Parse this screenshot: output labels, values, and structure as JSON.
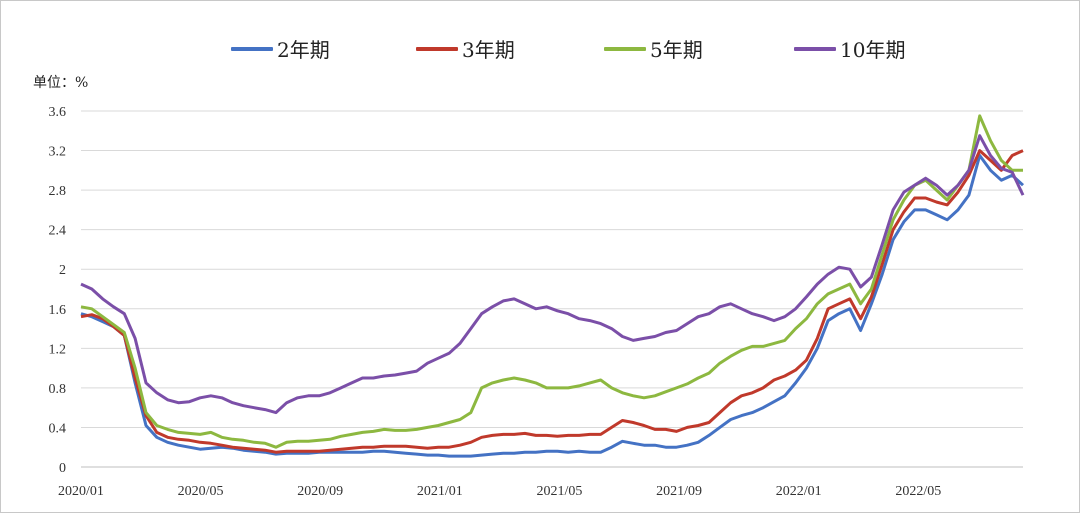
{
  "chart_data": {
    "type": "line",
    "unit_label": "单位：%",
    "ylim": [
      0,
      3.6
    ],
    "yticks": [
      "0",
      "0.4",
      "0.8",
      "1.2",
      "1.6",
      "2",
      "2.4",
      "2.8",
      "3.2",
      "3.6"
    ],
    "xticks": [
      "2020/01",
      "2020/05",
      "2020/09",
      "2021/01",
      "2021/05",
      "2021/09",
      "2022/01",
      "2022/05"
    ],
    "xrange": [
      "2020/01",
      "2022/08"
    ],
    "grid": "horizontal",
    "legend_position": "top",
    "series": [
      {
        "name": "2年期",
        "color": "#4472C4",
        "values": [
          1.55,
          1.52,
          1.47,
          1.42,
          1.33,
          0.85,
          0.42,
          0.3,
          0.25,
          0.22,
          0.2,
          0.18,
          0.19,
          0.2,
          0.19,
          0.17,
          0.16,
          0.15,
          0.13,
          0.14,
          0.14,
          0.14,
          0.15,
          0.15,
          0.15,
          0.15,
          0.15,
          0.16,
          0.16,
          0.15,
          0.14,
          0.13,
          0.12,
          0.12,
          0.11,
          0.11,
          0.11,
          0.12,
          0.13,
          0.14,
          0.14,
          0.15,
          0.15,
          0.16,
          0.16,
          0.15,
          0.16,
          0.15,
          0.15,
          0.2,
          0.26,
          0.24,
          0.22,
          0.22,
          0.2,
          0.2,
          0.22,
          0.25,
          0.32,
          0.4,
          0.48,
          0.52,
          0.55,
          0.6,
          0.66,
          0.72,
          0.85,
          1.0,
          1.2,
          1.48,
          1.55,
          1.6,
          1.38,
          1.65,
          1.95,
          2.3,
          2.48,
          2.6,
          2.6,
          2.55,
          2.5,
          2.6,
          2.75,
          3.15,
          3.0,
          2.9,
          2.95,
          2.85
        ]
      },
      {
        "name": "3年期",
        "color": "#C0392B",
        "values": [
          1.52,
          1.54,
          1.5,
          1.42,
          1.33,
          0.9,
          0.52,
          0.35,
          0.3,
          0.28,
          0.27,
          0.25,
          0.24,
          0.22,
          0.2,
          0.19,
          0.18,
          0.17,
          0.15,
          0.16,
          0.16,
          0.16,
          0.16,
          0.17,
          0.18,
          0.19,
          0.2,
          0.2,
          0.21,
          0.21,
          0.21,
          0.2,
          0.19,
          0.2,
          0.2,
          0.22,
          0.25,
          0.3,
          0.32,
          0.33,
          0.33,
          0.34,
          0.32,
          0.32,
          0.31,
          0.32,
          0.32,
          0.33,
          0.33,
          0.4,
          0.47,
          0.45,
          0.42,
          0.38,
          0.38,
          0.36,
          0.4,
          0.42,
          0.45,
          0.55,
          0.65,
          0.72,
          0.75,
          0.8,
          0.88,
          0.92,
          0.98,
          1.08,
          1.3,
          1.6,
          1.65,
          1.7,
          1.5,
          1.72,
          2.05,
          2.4,
          2.58,
          2.72,
          2.72,
          2.68,
          2.65,
          2.78,
          2.95,
          3.2,
          3.1,
          3.0,
          3.15,
          3.2
        ]
      },
      {
        "name": "5年期",
        "color": "#8DB840",
        "values": [
          1.62,
          1.6,
          1.52,
          1.44,
          1.36,
          1.0,
          0.55,
          0.42,
          0.38,
          0.35,
          0.34,
          0.33,
          0.35,
          0.3,
          0.28,
          0.27,
          0.25,
          0.24,
          0.2,
          0.25,
          0.26,
          0.26,
          0.27,
          0.28,
          0.31,
          0.33,
          0.35,
          0.36,
          0.38,
          0.37,
          0.37,
          0.38,
          0.4,
          0.42,
          0.45,
          0.48,
          0.55,
          0.8,
          0.85,
          0.88,
          0.9,
          0.88,
          0.85,
          0.8,
          0.8,
          0.8,
          0.82,
          0.85,
          0.88,
          0.8,
          0.75,
          0.72,
          0.7,
          0.72,
          0.76,
          0.8,
          0.84,
          0.9,
          0.95,
          1.05,
          1.12,
          1.18,
          1.22,
          1.22,
          1.25,
          1.28,
          1.4,
          1.5,
          1.65,
          1.75,
          1.8,
          1.85,
          1.65,
          1.8,
          2.15,
          2.5,
          2.7,
          2.85,
          2.9,
          2.8,
          2.7,
          2.85,
          3.0,
          3.55,
          3.3,
          3.1,
          3.0,
          3.0
        ]
      },
      {
        "name": "10年期",
        "color": "#7B4FA8",
        "values": [
          1.85,
          1.8,
          1.7,
          1.62,
          1.55,
          1.3,
          0.85,
          0.75,
          0.68,
          0.65,
          0.66,
          0.7,
          0.72,
          0.7,
          0.65,
          0.62,
          0.6,
          0.58,
          0.55,
          0.65,
          0.7,
          0.72,
          0.72,
          0.75,
          0.8,
          0.85,
          0.9,
          0.9,
          0.92,
          0.93,
          0.95,
          0.97,
          1.05,
          1.1,
          1.15,
          1.25,
          1.4,
          1.55,
          1.62,
          1.68,
          1.7,
          1.65,
          1.6,
          1.62,
          1.58,
          1.55,
          1.5,
          1.48,
          1.45,
          1.4,
          1.32,
          1.28,
          1.3,
          1.32,
          1.36,
          1.38,
          1.45,
          1.52,
          1.55,
          1.62,
          1.65,
          1.6,
          1.55,
          1.52,
          1.48,
          1.52,
          1.6,
          1.72,
          1.85,
          1.95,
          2.02,
          2.0,
          1.82,
          1.92,
          2.25,
          2.6,
          2.78,
          2.85,
          2.92,
          2.85,
          2.75,
          2.85,
          3.0,
          3.35,
          3.15,
          3.02,
          2.98,
          2.75
        ]
      }
    ]
  }
}
